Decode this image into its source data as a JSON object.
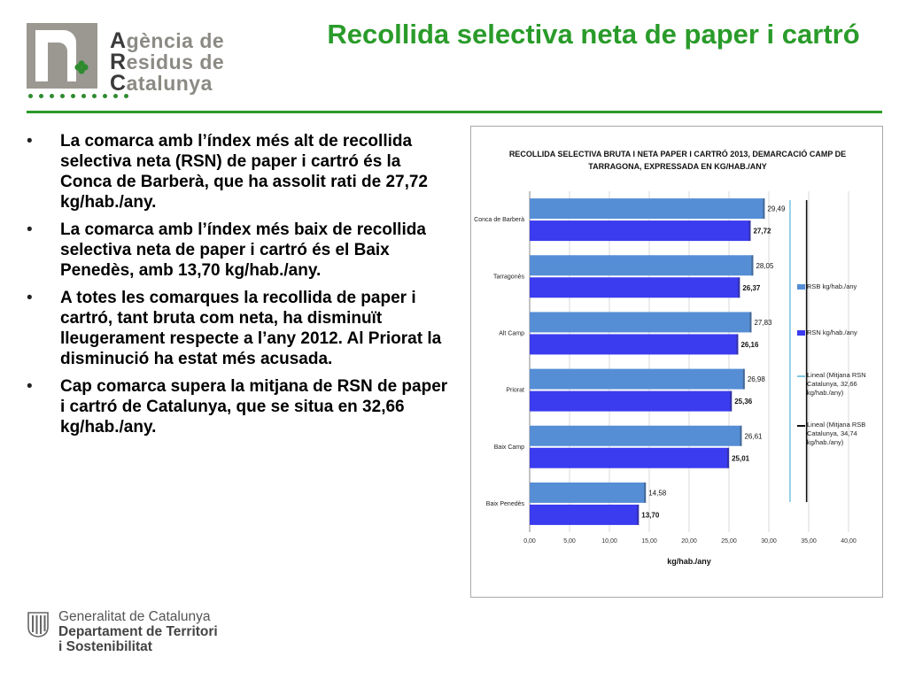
{
  "header": {
    "logo_lines": [
      "Agència de",
      "Residus de",
      "Catalunya"
    ],
    "logo_initials": [
      "A",
      "R",
      "C"
    ],
    "title": "Recollida selectiva neta de paper i cartró"
  },
  "bullets": [
    "La comarca amb l’índex més alt de recollida selectiva neta (RSN) de paper i cartró és la Conca de Barberà, que ha assolit rati de 27,72 kg/hab./any.",
    "La comarca amb l’índex més baix de recollida selectiva neta de paper i cartró és el Baix Penedès, amb 13,70 kg/hab./any.",
    "A totes les comarques la recollida de paper i cartró, tant bruta com neta, ha disminuït lleugerament respecte a l’any 2012. Al Priorat la disminució ha estat més acusada.",
    "Cap comarca supera la mitjana de RSN de paper i cartró de Catalunya, que se situa en 32,66 kg/hab./any."
  ],
  "bullet_glyph": "•",
  "chart_data": {
    "type": "bar",
    "orientation": "horizontal",
    "title": "RECOLLIDA SELECTIVA BRUTA I NETA PAPER I CARTRÓ 2013, DEMARCACIÓ CAMP DE TARRAGONA, EXPRESSADA EN KG/HAB./ANY",
    "xlabel": "kg/hab./any",
    "ylabel": "",
    "categories": [
      "Conca de Barberà",
      "Tarragonès",
      "Alt Camp",
      "Priorat",
      "Baix Camp",
      "Baix Penedès"
    ],
    "series": [
      {
        "name": "RSB kg/hab./any",
        "color": "#558ed5",
        "values": [
          29.49,
          28.05,
          27.83,
          26.98,
          26.61,
          14.58
        ],
        "labels": [
          "29,49",
          "28,05",
          "27,83",
          "26,98",
          "26,61",
          "14,58"
        ]
      },
      {
        "name": "RSN kg/hab./any",
        "color": "#3b3bef",
        "values": [
          27.72,
          26.37,
          26.16,
          25.36,
          25.01,
          13.7
        ],
        "labels": [
          "27,72",
          "26,37",
          "26,16",
          "25,36",
          "25,01",
          "13,70"
        ]
      }
    ],
    "reference_lines": [
      {
        "name": "Lineal (Mitjana RSN Catalunya, 32,66 kg/hab./any)",
        "value": 32.66,
        "color": "#7ec8e3"
      },
      {
        "name": "Lineal (Mitjana RSB Catalunya, 34,74 kg/hab./any)",
        "value": 34.74,
        "color": "#111111"
      }
    ],
    "xlim": [
      0,
      40
    ],
    "xticks": [
      0,
      5,
      10,
      15,
      20,
      25,
      30,
      35,
      40
    ],
    "xtick_labels": [
      "0,00",
      "5,00",
      "10,00",
      "15,00",
      "20,00",
      "25,00",
      "30,00",
      "35,00",
      "40,00"
    ],
    "grid": true,
    "legend_position": "right"
  },
  "footer": {
    "line1": "Generalitat de Catalunya",
    "line2": "Departament de Territori",
    "line3": "i Sostenibilitat"
  },
  "colors": {
    "accent_green": "#2a9b2a",
    "logo_gray": "#9a9891"
  }
}
